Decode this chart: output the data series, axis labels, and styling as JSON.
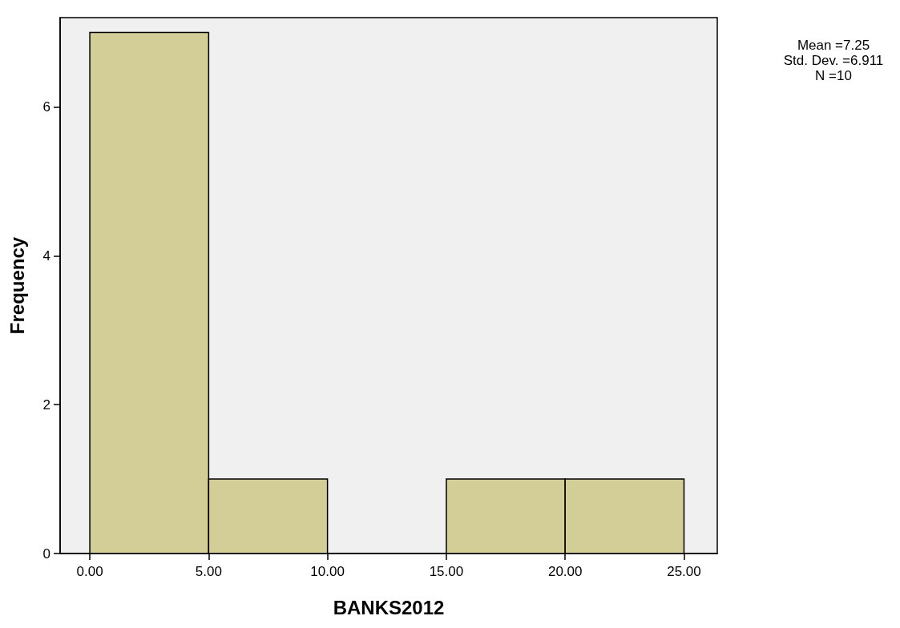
{
  "chart_data": {
    "type": "histogram",
    "xlabel": "BANKS2012",
    "ylabel": "Frequency",
    "bins": [
      0,
      5,
      10,
      15,
      20,
      25
    ],
    "values": [
      7,
      1,
      0,
      1,
      1
    ],
    "color": "#d3ce97",
    "xlim": [
      -1.25,
      26.4
    ],
    "ylim": [
      0,
      7.2
    ],
    "xticks": [
      {
        "value": 0,
        "label": "0.00"
      },
      {
        "value": 5,
        "label": "5.00"
      },
      {
        "value": 10,
        "label": "10.00"
      },
      {
        "value": 15,
        "label": "15.00"
      },
      {
        "value": 20,
        "label": "20.00"
      },
      {
        "value": 25,
        "label": "25.00"
      }
    ],
    "yticks": [
      0,
      2,
      4,
      6
    ],
    "grid": false,
    "annotations": [
      "Mean =7.25",
      "Std. Dev. =6.911",
      "N =10"
    ]
  }
}
